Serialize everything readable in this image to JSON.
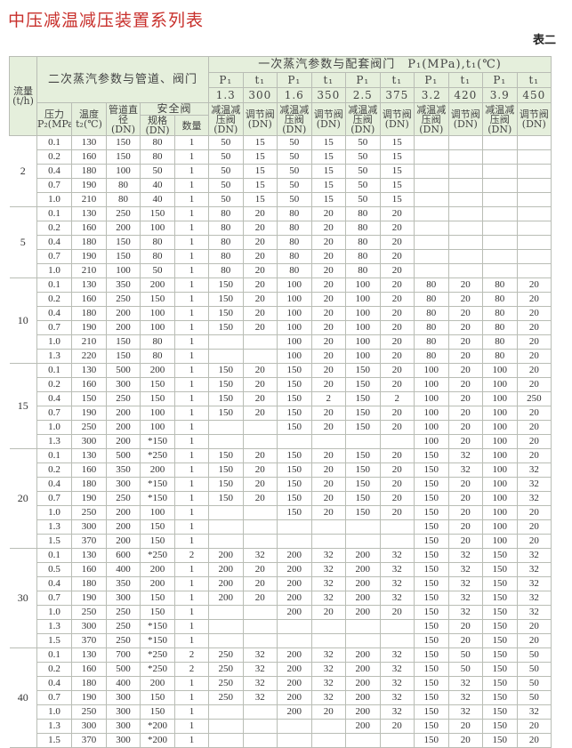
{
  "title": "中压减温减压装置系列表",
  "table_no": "表二",
  "header": {
    "flow": "流量(t/h)",
    "secondary": "二次蒸汽参数与管道、阀门",
    "primary": "一次蒸汽参数与配套阀门　P₁(MPa),t₁(℃)",
    "param_labels": [
      "P₁",
      "t₁",
      "P₁",
      "t₁",
      "P₁",
      "t₁",
      "P₁",
      "t₁",
      "P₁",
      "t₁"
    ],
    "param_values": [
      "1.3",
      "300",
      "1.6",
      "350",
      "2.5",
      "375",
      "3.2",
      "420",
      "3.9",
      "450"
    ],
    "pressure": "压力P₂(MPa)",
    "temperature": "温度t₂(℃)",
    "pipe_diameter": "管道直径(DN)",
    "safety_valve": "安全阀",
    "spec": "规格(DN)",
    "quantity": "数量",
    "valve_labels": [
      "减温减压阀(DN)",
      "调节阀(DN)",
      "减温减压阀(DN)",
      "调节阀(DN)",
      "减温减压阀(DN)",
      "调节阀(DN)",
      "减温减压阀(DN)",
      "调节阀(DN)",
      "减温减压阀(DN)",
      "调节阀(DN)"
    ]
  },
  "groups": [
    {
      "flow": "2",
      "rows": [
        [
          "0.1",
          "130",
          "150",
          "80",
          "1",
          "50",
          "15",
          "50",
          "15",
          "50",
          "15",
          "",
          "",
          "",
          ""
        ],
        [
          "0.2",
          "160",
          "150",
          "80",
          "1",
          "50",
          "15",
          "50",
          "15",
          "50",
          "15",
          "",
          "",
          "",
          ""
        ],
        [
          "0.4",
          "180",
          "100",
          "50",
          "1",
          "50",
          "15",
          "50",
          "15",
          "50",
          "15",
          "",
          "",
          "",
          ""
        ],
        [
          "0.7",
          "190",
          "80",
          "40",
          "1",
          "50",
          "15",
          "50",
          "15",
          "50",
          "15",
          "",
          "",
          "",
          ""
        ],
        [
          "1.0",
          "210",
          "80",
          "40",
          "1",
          "50",
          "15",
          "50",
          "15",
          "50",
          "15",
          "",
          "",
          "",
          ""
        ]
      ]
    },
    {
      "flow": "5",
      "rows": [
        [
          "0.1",
          "130",
          "250",
          "150",
          "1",
          "80",
          "20",
          "80",
          "20",
          "80",
          "20",
          "",
          "",
          "",
          ""
        ],
        [
          "0.2",
          "160",
          "200",
          "100",
          "1",
          "80",
          "20",
          "80",
          "20",
          "80",
          "20",
          "",
          "",
          "",
          ""
        ],
        [
          "0.4",
          "180",
          "150",
          "80",
          "1",
          "80",
          "20",
          "80",
          "20",
          "80",
          "20",
          "",
          "",
          "",
          ""
        ],
        [
          "0.7",
          "190",
          "150",
          "80",
          "1",
          "80",
          "20",
          "80",
          "20",
          "80",
          "20",
          "",
          "",
          "",
          ""
        ],
        [
          "1.0",
          "210",
          "100",
          "50",
          "1",
          "80",
          "20",
          "80",
          "20",
          "80",
          "20",
          "",
          "",
          "",
          ""
        ]
      ]
    },
    {
      "flow": "10",
      "rows": [
        [
          "0.1",
          "130",
          "350",
          "200",
          "1",
          "150",
          "20",
          "100",
          "20",
          "100",
          "20",
          "80",
          "20",
          "80",
          "20"
        ],
        [
          "0.2",
          "160",
          "250",
          "150",
          "1",
          "150",
          "20",
          "100",
          "20",
          "100",
          "20",
          "80",
          "20",
          "80",
          "20"
        ],
        [
          "0.4",
          "180",
          "200",
          "100",
          "1",
          "150",
          "20",
          "100",
          "20",
          "100",
          "20",
          "80",
          "20",
          "80",
          "20"
        ],
        [
          "0.7",
          "190",
          "200",
          "100",
          "1",
          "150",
          "20",
          "100",
          "20",
          "100",
          "20",
          "80",
          "20",
          "80",
          "20"
        ],
        [
          "1.0",
          "210",
          "150",
          "80",
          "1",
          "",
          "",
          "100",
          "20",
          "100",
          "20",
          "80",
          "20",
          "80",
          "20"
        ],
        [
          "1.3",
          "220",
          "150",
          "80",
          "1",
          "",
          "",
          "100",
          "20",
          "100",
          "20",
          "80",
          "20",
          "80",
          "20"
        ]
      ]
    },
    {
      "flow": "15",
      "rows": [
        [
          "0.1",
          "130",
          "500",
          "200",
          "1",
          "150",
          "20",
          "150",
          "20",
          "150",
          "20",
          "100",
          "20",
          "100",
          "20"
        ],
        [
          "0.2",
          "160",
          "300",
          "150",
          "1",
          "150",
          "20",
          "150",
          "20",
          "150",
          "20",
          "100",
          "20",
          "100",
          "20"
        ],
        [
          "0.4",
          "150",
          "250",
          "150",
          "1",
          "150",
          "20",
          "150",
          "2",
          "150",
          "2",
          "100",
          "20",
          "100",
          "250"
        ],
        [
          "0.7",
          "190",
          "200",
          "100",
          "1",
          "150",
          "20",
          "150",
          "20",
          "150",
          "20",
          "100",
          "20",
          "100",
          "20"
        ],
        [
          "1.0",
          "250",
          "200",
          "100",
          "1",
          "",
          "",
          "150",
          "20",
          "150",
          "20",
          "100",
          "20",
          "100",
          "20"
        ],
        [
          "1.3",
          "300",
          "200",
          "*150",
          "1",
          "",
          "",
          "",
          "",
          "",
          "",
          "100",
          "20",
          "100",
          "20"
        ]
      ]
    },
    {
      "flow": "20",
      "rows": [
        [
          "0.1",
          "130",
          "500",
          "*250",
          "1",
          "150",
          "20",
          "150",
          "20",
          "150",
          "20",
          "150",
          "32",
          "100",
          "20"
        ],
        [
          "0.2",
          "160",
          "350",
          "200",
          "1",
          "150",
          "20",
          "150",
          "20",
          "150",
          "20",
          "150",
          "32",
          "100",
          "32"
        ],
        [
          "0.4",
          "180",
          "300",
          "*150",
          "1",
          "150",
          "20",
          "150",
          "20",
          "150",
          "20",
          "150",
          "20",
          "100",
          "32"
        ],
        [
          "0.7",
          "190",
          "250",
          "*150",
          "1",
          "150",
          "20",
          "150",
          "20",
          "150",
          "20",
          "150",
          "20",
          "100",
          "32"
        ],
        [
          "1.0",
          "250",
          "200",
          "100",
          "1",
          "",
          "",
          "150",
          "20",
          "150",
          "20",
          "150",
          "20",
          "100",
          "20"
        ],
        [
          "1.3",
          "300",
          "200",
          "150",
          "1",
          "",
          "",
          "",
          "",
          "",
          "",
          "150",
          "20",
          "100",
          "20"
        ],
        [
          "1.5",
          "370",
          "200",
          "150",
          "1",
          "",
          "",
          "",
          "",
          "",
          "",
          "150",
          "20",
          "100",
          "20"
        ]
      ]
    },
    {
      "flow": "30",
      "rows": [
        [
          "0.1",
          "130",
          "600",
          "*250",
          "2",
          "200",
          "32",
          "200",
          "32",
          "200",
          "32",
          "150",
          "32",
          "150",
          "32"
        ],
        [
          "0.5",
          "160",
          "400",
          "200",
          "1",
          "200",
          "20",
          "200",
          "32",
          "200",
          "32",
          "150",
          "32",
          "150",
          "32"
        ],
        [
          "0.4",
          "180",
          "350",
          "200",
          "1",
          "200",
          "20",
          "200",
          "32",
          "200",
          "32",
          "150",
          "32",
          "150",
          "32"
        ],
        [
          "0.7",
          "190",
          "300",
          "150",
          "1",
          "200",
          "20",
          "200",
          "32",
          "200",
          "32",
          "150",
          "32",
          "150",
          "32"
        ],
        [
          "1.0",
          "250",
          "250",
          "150",
          "1",
          "",
          "",
          "200",
          "20",
          "200",
          "20",
          "150",
          "32",
          "150",
          "32"
        ],
        [
          "1.3",
          "300",
          "250",
          "*150",
          "1",
          "",
          "",
          "",
          "",
          "",
          "",
          "150",
          "20",
          "150",
          "20"
        ],
        [
          "1.5",
          "370",
          "250",
          "*150",
          "1",
          "",
          "",
          "",
          "",
          "",
          "",
          "150",
          "20",
          "150",
          "20"
        ]
      ]
    },
    {
      "flow": "40",
      "rows": [
        [
          "0.1",
          "130",
          "700",
          "*250",
          "2",
          "250",
          "32",
          "200",
          "32",
          "200",
          "32",
          "150",
          "50",
          "150",
          "50"
        ],
        [
          "0.2",
          "160",
          "500",
          "*250",
          "2",
          "250",
          "32",
          "200",
          "32",
          "200",
          "32",
          "150",
          "50",
          "150",
          "50"
        ],
        [
          "0.4",
          "180",
          "400",
          "200",
          "1",
          "250",
          "32",
          "200",
          "32",
          "200",
          "32",
          "150",
          "32",
          "150",
          "50"
        ],
        [
          "0.7",
          "190",
          "300",
          "150",
          "1",
          "250",
          "32",
          "200",
          "32",
          "200",
          "32",
          "150",
          "32",
          "150",
          "50"
        ],
        [
          "1.0",
          "250",
          "300",
          "150",
          "1",
          "",
          "",
          "200",
          "20",
          "200",
          "32",
          "150",
          "32",
          "150",
          "32"
        ],
        [
          "1.3",
          "300",
          "300",
          "*200",
          "1",
          "",
          "",
          "",
          "",
          "200",
          "20",
          "150",
          "20",
          "150",
          "20"
        ],
        [
          "1.5",
          "370",
          "300",
          "*200",
          "1",
          "",
          "",
          "",
          "",
          "",
          "",
          "150",
          "20",
          "150",
          "20"
        ]
      ]
    }
  ],
  "colors": {
    "title": "#c8302c",
    "header_bg": "#e5efdc",
    "grid": "#b9bdb5"
  }
}
